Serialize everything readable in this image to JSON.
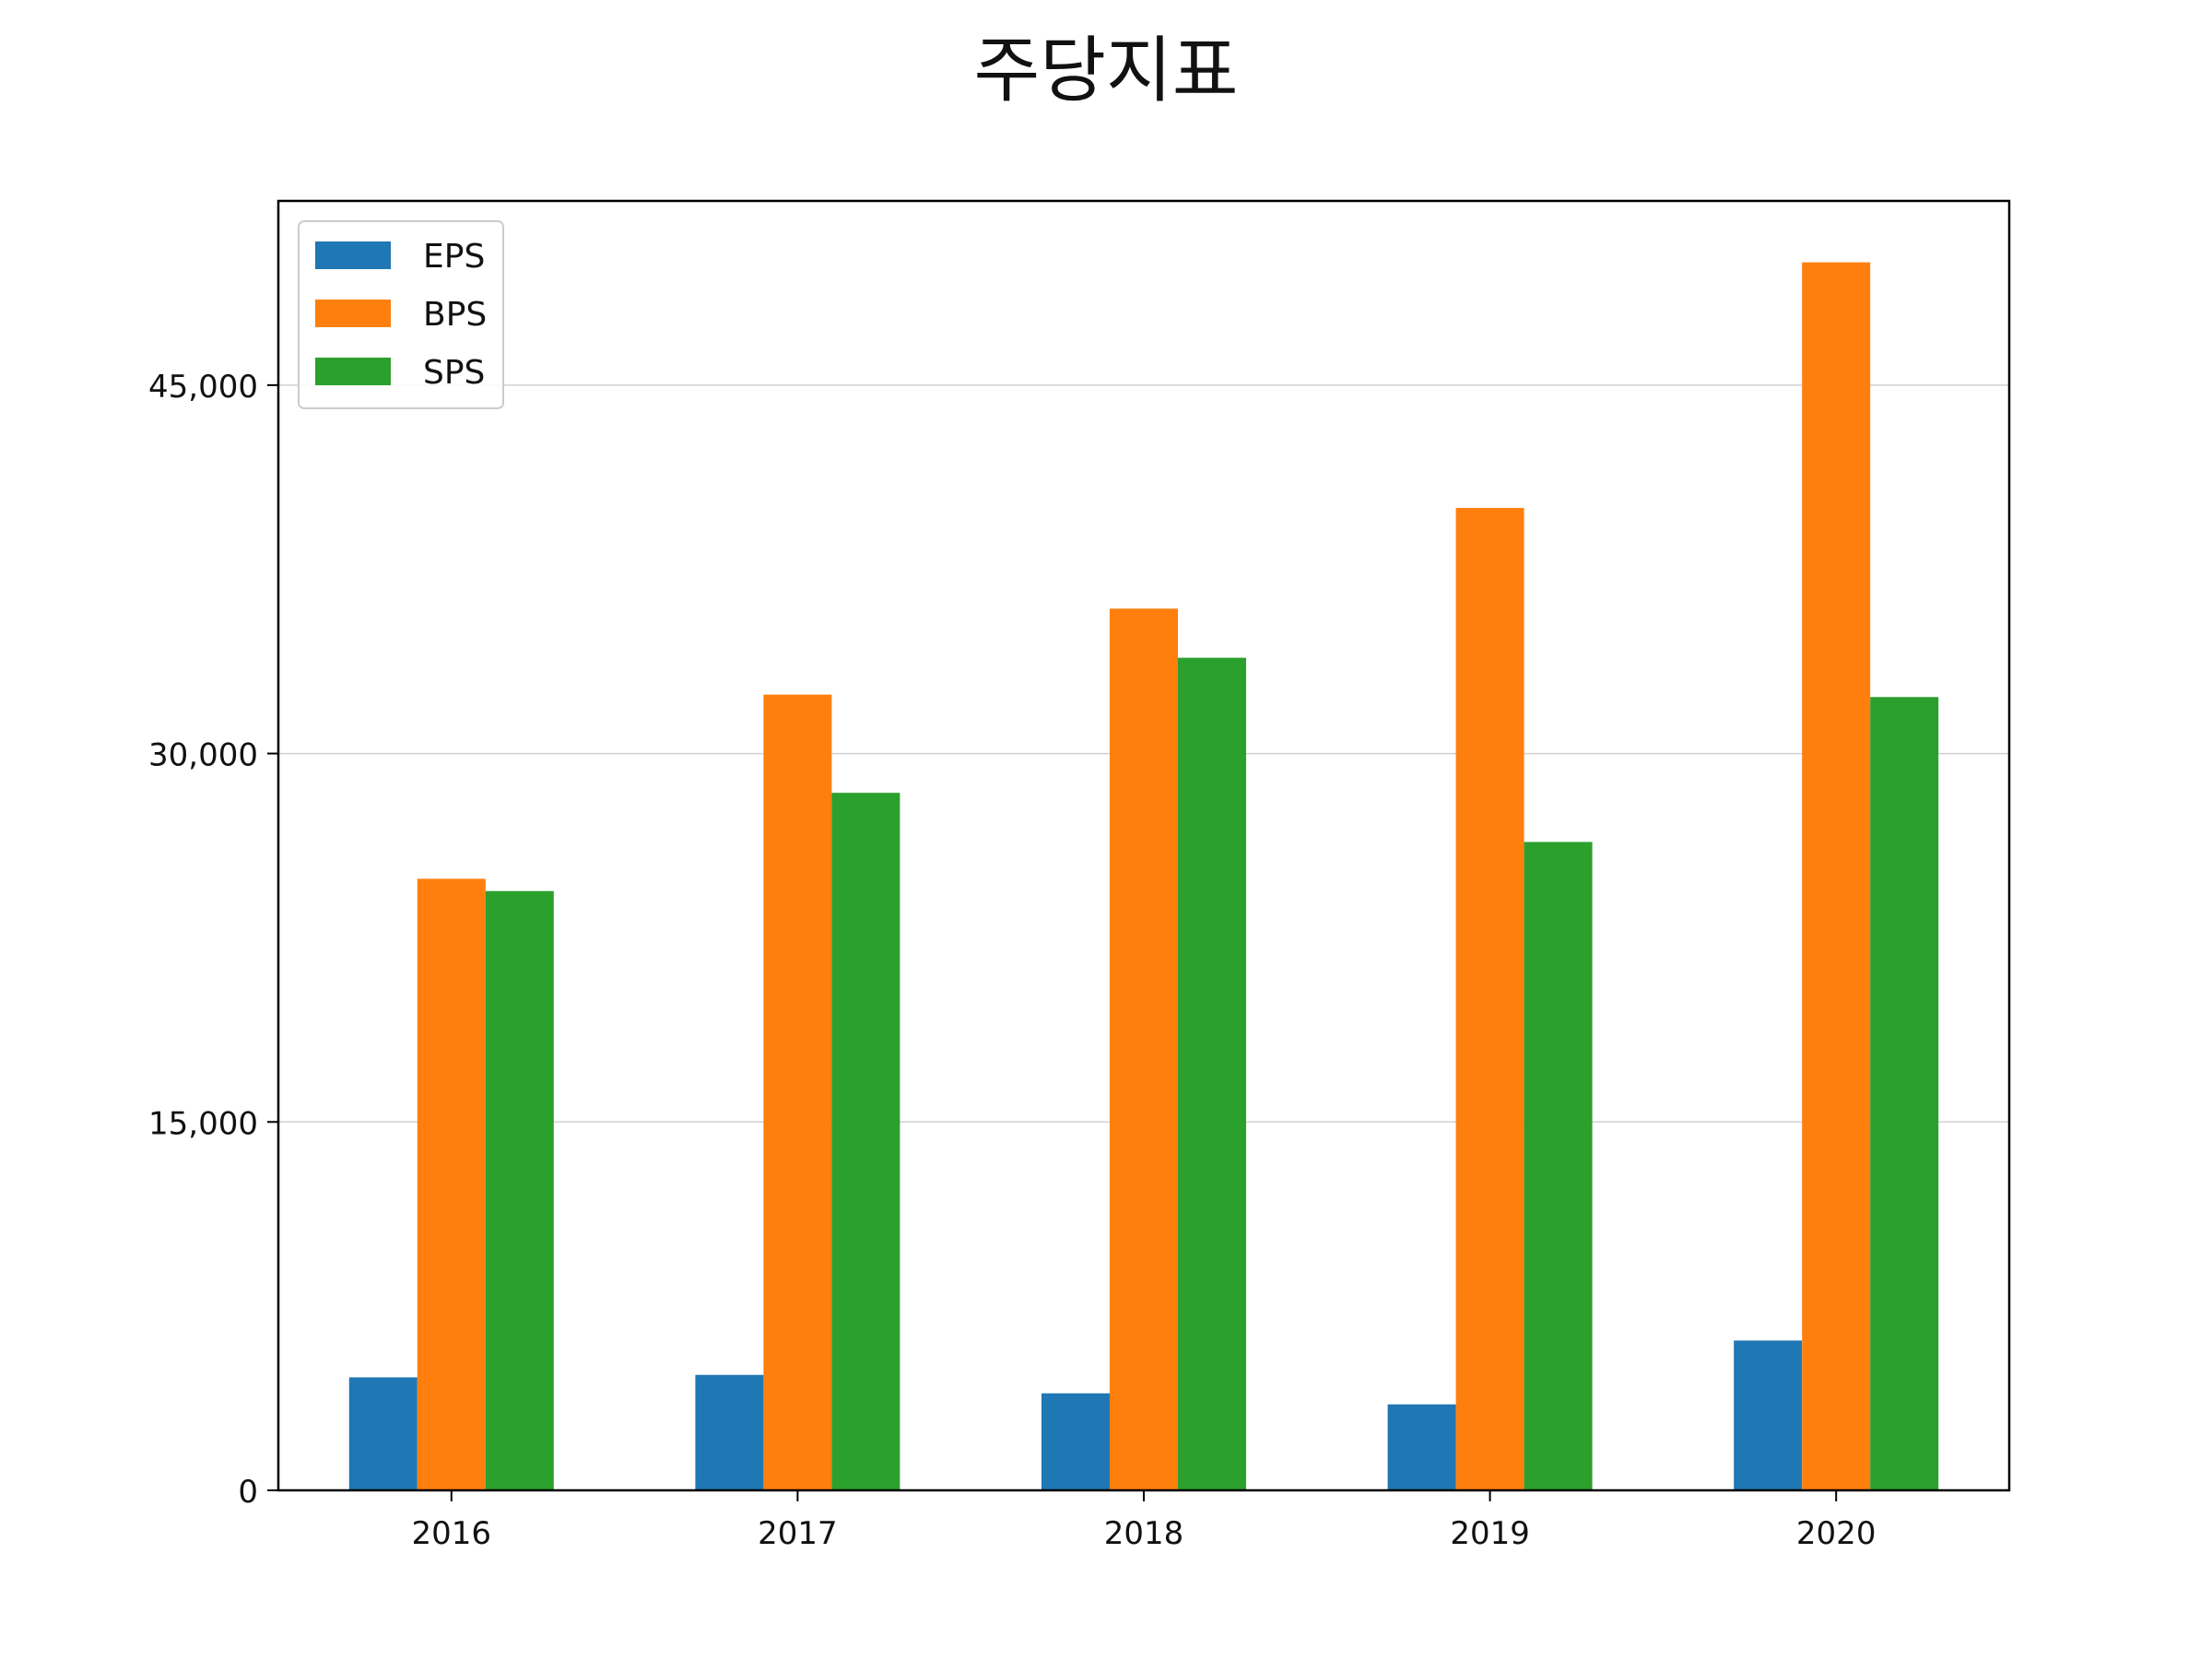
{
  "chart_data": {
    "type": "bar",
    "title": "주당지표",
    "categories": [
      "2016",
      "2017",
      "2018",
      "2019",
      "2020"
    ],
    "series": [
      {
        "name": "EPS",
        "color": "#1f77b4",
        "values": [
          4600,
          4700,
          3950,
          3500,
          6100
        ]
      },
      {
        "name": "BPS",
        "color": "#ff7f0e",
        "values": [
          24900,
          32400,
          35900,
          40000,
          50000
        ]
      },
      {
        "name": "SPS",
        "color": "#2ca02c",
        "values": [
          24400,
          28400,
          33900,
          26400,
          32300
        ]
      }
    ],
    "yticks": [
      0,
      15000,
      30000,
      45000
    ],
    "ytick_labels": [
      "0",
      "15,000",
      "30,000",
      "45,000"
    ],
    "ylim": [
      0,
      52500
    ],
    "grid": "horizontal",
    "legend_position": "top-left"
  }
}
